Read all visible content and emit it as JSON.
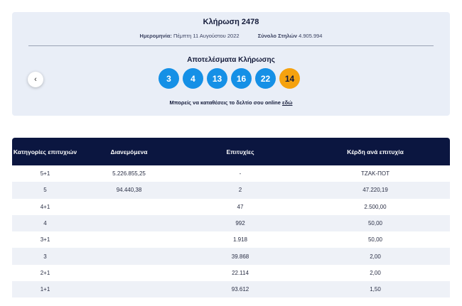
{
  "draw": {
    "title": "Κλήρωση 2478",
    "date_label": "Ημερομηνία:",
    "date_value": "Πέμπτη 11 Αυγούστου 2022",
    "total_label": "Σύνολο Στηλών",
    "total_value": "4.905.994",
    "results_title": "Αποτελέσματα Κλήρωσης",
    "numbers": [
      "3",
      "4",
      "13",
      "16",
      "22"
    ],
    "joker": "14",
    "online_text": "Μπορείς να καταθέσεις το δελτίο σου online",
    "online_link": "εδώ",
    "prev_icon": "‹"
  },
  "colors": {
    "ball": "#1590e6",
    "joker": "#f5a20f",
    "header": "#0b1640"
  },
  "table": {
    "headers": [
      "Κατηγορίες επιτυχιών",
      "Διανεμόμενα",
      "Επιτυχίες",
      "Κέρδη ανά επιτυχία"
    ],
    "rows": [
      [
        "5+1",
        "5.226.855,25",
        "-",
        "ΤΖΑΚ-ΠΟΤ"
      ],
      [
        "5",
        "94.440,38",
        "2",
        "47.220,19"
      ],
      [
        "4+1",
        "",
        "47",
        "2.500,00"
      ],
      [
        "4",
        "",
        "992",
        "50,00"
      ],
      [
        "3+1",
        "",
        "1.918",
        "50,00"
      ],
      [
        "3",
        "",
        "39.868",
        "2,00"
      ],
      [
        "2+1",
        "",
        "22.114",
        "2,00"
      ],
      [
        "1+1",
        "",
        "93.612",
        "1,50"
      ]
    ]
  }
}
